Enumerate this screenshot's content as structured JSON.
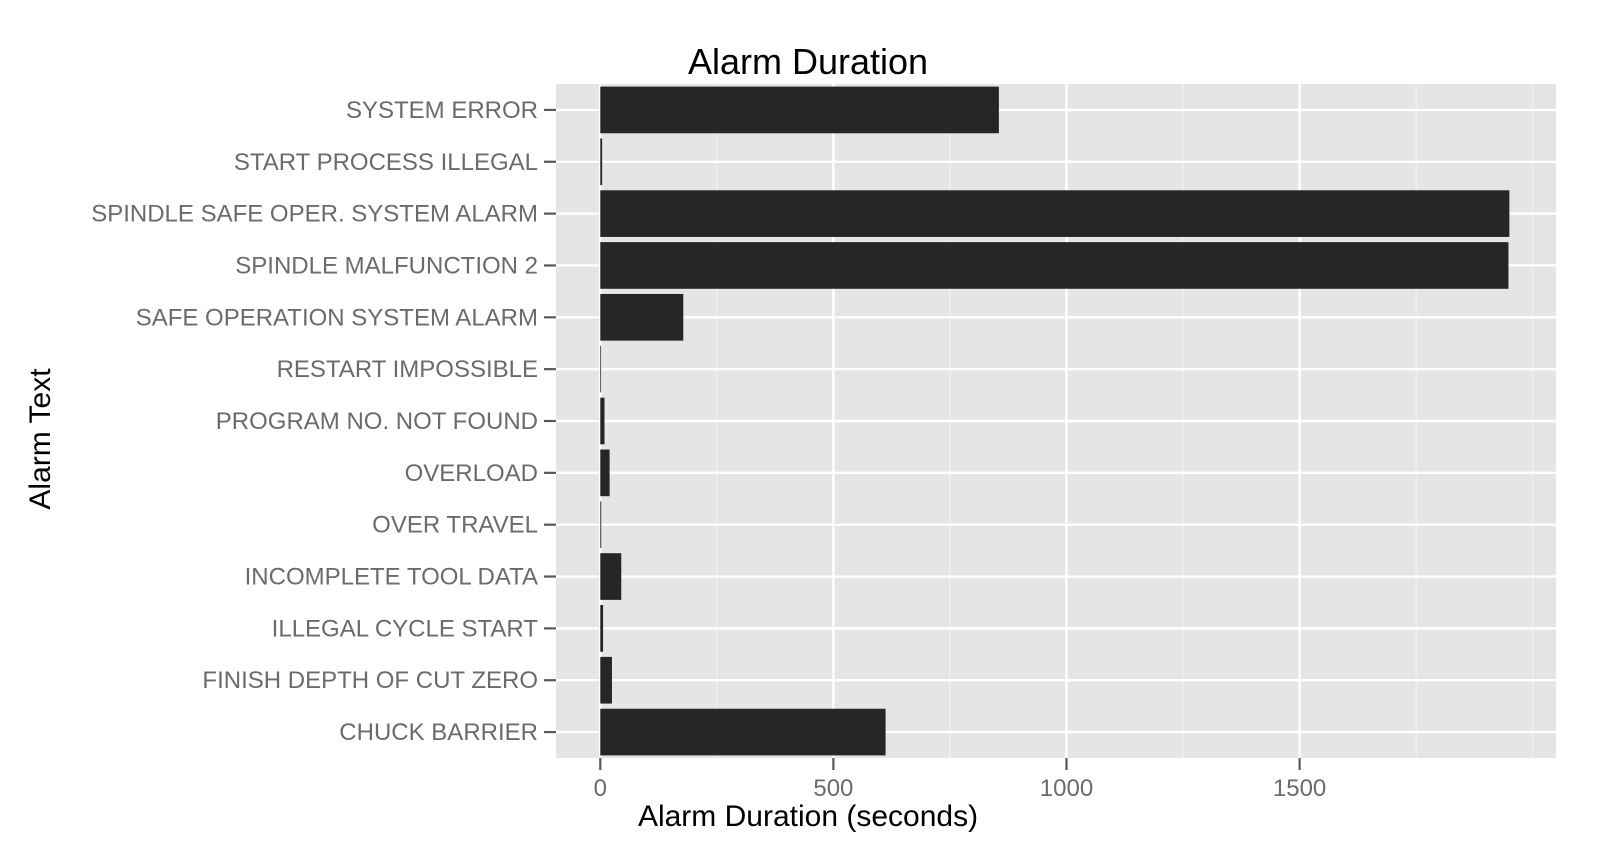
{
  "chart_data": {
    "type": "bar",
    "orientation": "horizontal",
    "title": "Alarm Duration",
    "xlabel": "Alarm Duration (seconds)",
    "ylabel": "Alarm Text",
    "categories": [
      "SYSTEM ERROR",
      "START PROCESS ILLEGAL",
      "SPINDLE SAFE OPER. SYSTEM ALARM",
      "SPINDLE MALFUNCTION 2",
      "SAFE OPERATION SYSTEM ALARM",
      "RESTART IMPOSSIBLE",
      "PROGRAM NO. NOT FOUND",
      "OVERLOAD",
      "OVER TRAVEL",
      "INCOMPLETE TOOL DATA",
      "ILLEGAL CYCLE START",
      "FINISH DEPTH OF CUT ZERO",
      "CHUCK BARRIER"
    ],
    "values": [
      855,
      4,
      1950,
      1948,
      178,
      1,
      9,
      20,
      2,
      45,
      6,
      25,
      612
    ],
    "xlim": [
      -95,
      2050
    ],
    "xticks": [
      0,
      500,
      1000,
      1500
    ],
    "xtick_labels": [
      "0",
      "500",
      "1000",
      "1500"
    ],
    "x_minor_ticks": [
      250,
      750,
      1250,
      1750,
      2000
    ],
    "grid": true,
    "legend": "none",
    "colors": {
      "bar": "#262626",
      "panel": "#e5e5e5",
      "grid": "#ffffff"
    }
  }
}
